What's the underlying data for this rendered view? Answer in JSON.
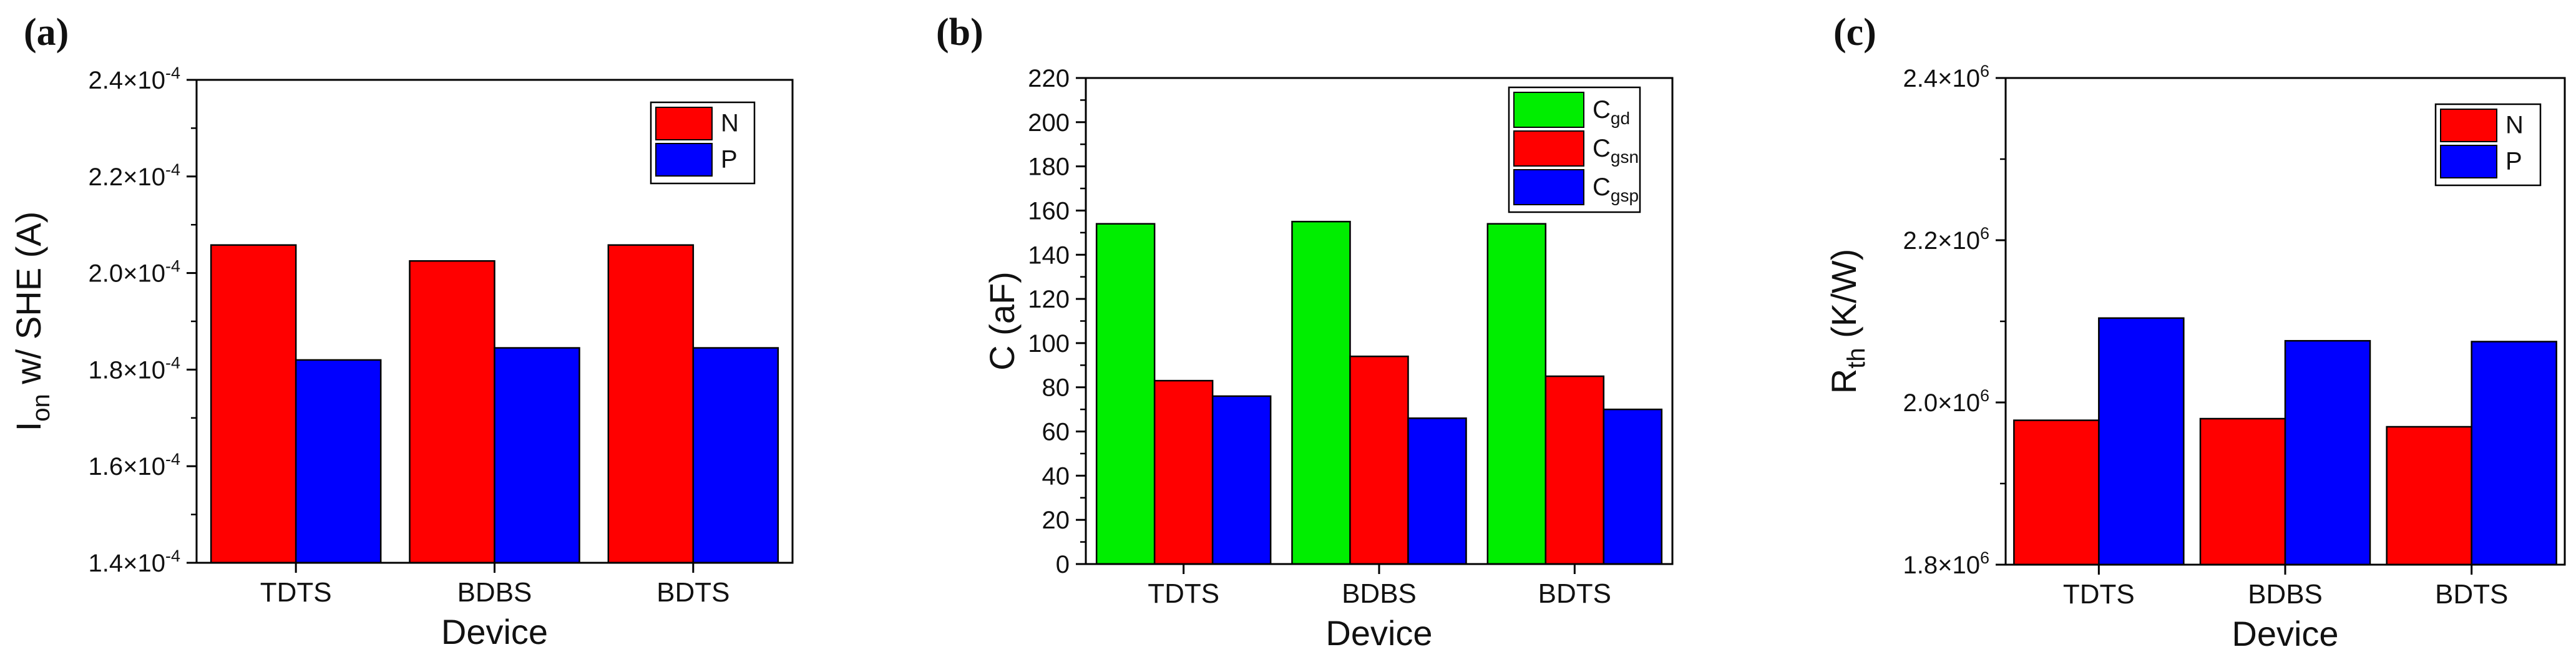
{
  "colors": {
    "N": "#ff0000",
    "P": "#0000ff",
    "Cgd": "#00ee00",
    "axis": "#000000"
  },
  "chart_data": [
    {
      "panel": "(a)",
      "type": "bar",
      "title": "",
      "categories": [
        "TDTS",
        "BDBS",
        "BDTS"
      ],
      "xlabel": "Device",
      "ylabel": {
        "main": "I",
        "sub": "on",
        "rest": " w/ SHE (A)"
      },
      "ylim": [
        0.00014,
        0.00024
      ],
      "yticks": [
        0.00014,
        0.00016,
        0.00018,
        0.0002,
        0.00022,
        0.00024
      ],
      "ytick_labels": [
        {
          "mant": "1.4",
          "exp": "-4"
        },
        {
          "mant": "1.6",
          "exp": "-4"
        },
        {
          "mant": "1.8",
          "exp": "-4"
        },
        {
          "mant": "2.0",
          "exp": "-4"
        },
        {
          "mant": "2.2",
          "exp": "-4"
        },
        {
          "mant": "2.4",
          "exp": "-4"
        }
      ],
      "series": [
        {
          "name": "N",
          "sub": "",
          "colorKey": "N",
          "values": [
            0.0002058,
            0.0002025,
            0.0002058
          ]
        },
        {
          "name": "P",
          "sub": "",
          "colorKey": "P",
          "values": [
            0.000182,
            0.0001845,
            0.0001845
          ]
        }
      ],
      "legend": "top-right"
    },
    {
      "panel": "(b)",
      "type": "bar",
      "title": "",
      "categories": [
        "TDTS",
        "BDBS",
        "BDTS"
      ],
      "xlabel": "Device",
      "ylabel": {
        "main": "C (aF)",
        "sub": "",
        "rest": ""
      },
      "ylim": [
        0,
        220
      ],
      "yticks": [
        0,
        20,
        40,
        60,
        80,
        100,
        120,
        140,
        160,
        180,
        200,
        220
      ],
      "ytick_labels": [
        {
          "mant": "0",
          "exp": ""
        },
        {
          "mant": "20",
          "exp": ""
        },
        {
          "mant": "40",
          "exp": ""
        },
        {
          "mant": "60",
          "exp": ""
        },
        {
          "mant": "80",
          "exp": ""
        },
        {
          "mant": "100",
          "exp": ""
        },
        {
          "mant": "120",
          "exp": ""
        },
        {
          "mant": "140",
          "exp": ""
        },
        {
          "mant": "160",
          "exp": ""
        },
        {
          "mant": "180",
          "exp": ""
        },
        {
          "mant": "200",
          "exp": ""
        },
        {
          "mant": "220",
          "exp": ""
        }
      ],
      "series": [
        {
          "name": "C",
          "sub": "gd",
          "colorKey": "Cgd",
          "values": [
            154,
            155,
            154
          ]
        },
        {
          "name": "C",
          "sub": "gsn",
          "colorKey": "N",
          "values": [
            83,
            94,
            85
          ]
        },
        {
          "name": "C",
          "sub": "gsp",
          "colorKey": "P",
          "values": [
            76,
            66,
            70
          ]
        }
      ],
      "legend": "top-right"
    },
    {
      "panel": "(c)",
      "type": "bar",
      "title": "",
      "categories": [
        "TDTS",
        "BDBS",
        "BDTS"
      ],
      "xlabel": "Device",
      "ylabel": {
        "main": "R",
        "sub": "th",
        "rest": " (K/W)"
      },
      "ylim": [
        1800000.0,
        2400000.0
      ],
      "yticks": [
        1800000.0,
        2000000.0,
        2200000.0,
        2400000.0
      ],
      "ytick_labels": [
        {
          "mant": "1.8",
          "exp": "6"
        },
        {
          "mant": "2.0",
          "exp": "6"
        },
        {
          "mant": "2.2",
          "exp": "6"
        },
        {
          "mant": "2.4",
          "exp": "6"
        }
      ],
      "series": [
        {
          "name": "N",
          "sub": "",
          "colorKey": "N",
          "values": [
            1978000.0,
            1980000.0,
            1970000.0
          ]
        },
        {
          "name": "P",
          "sub": "",
          "colorKey": "P",
          "values": [
            2104000.0,
            2076000.0,
            2075000.0
          ]
        }
      ],
      "legend": "top-right"
    }
  ]
}
